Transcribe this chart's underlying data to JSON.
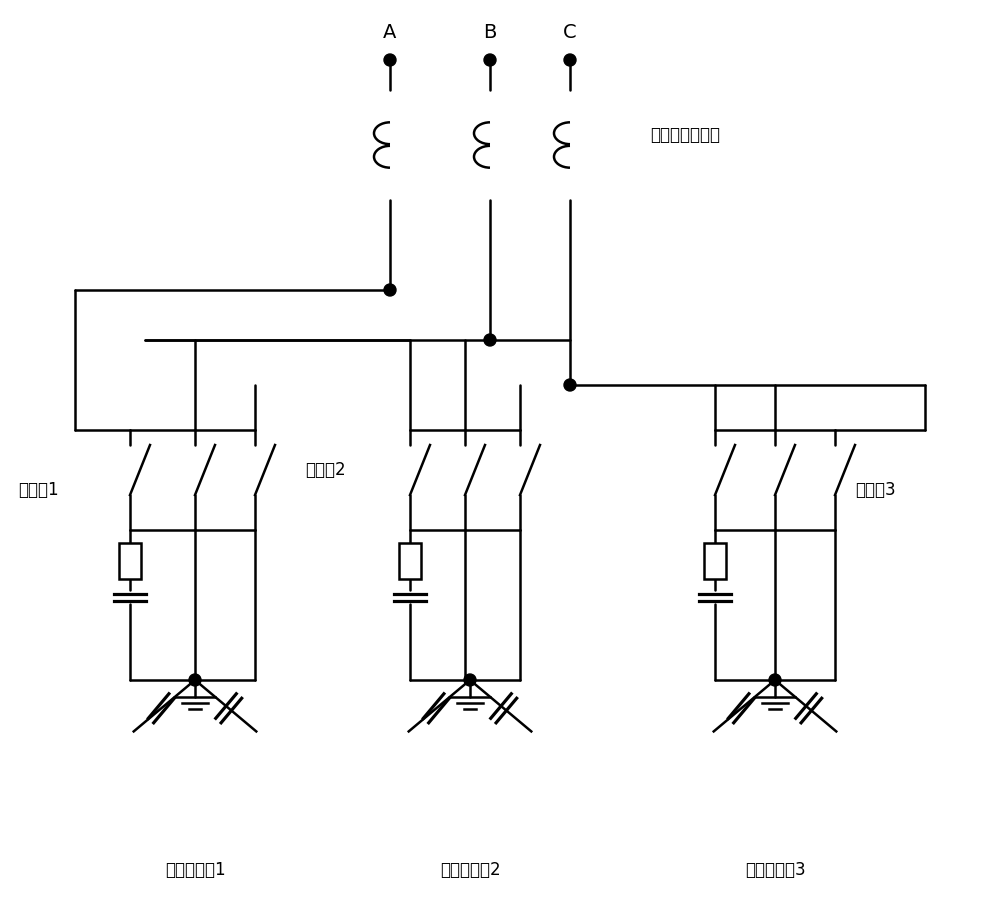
{
  "bg_color": "#ffffff",
  "line_color": "#000000",
  "phase_labels": [
    "A",
    "B",
    "C"
  ],
  "sensor_label": "霍尔电流传感器",
  "contactor1_label": "接触器1",
  "contactor2_label": "接触器2",
  "contactor3_label": "接触器3",
  "filter_label1": "滤波电容组1",
  "filter_label2": "滤波电容组2",
  "filter_label3": "滤波电容组3"
}
